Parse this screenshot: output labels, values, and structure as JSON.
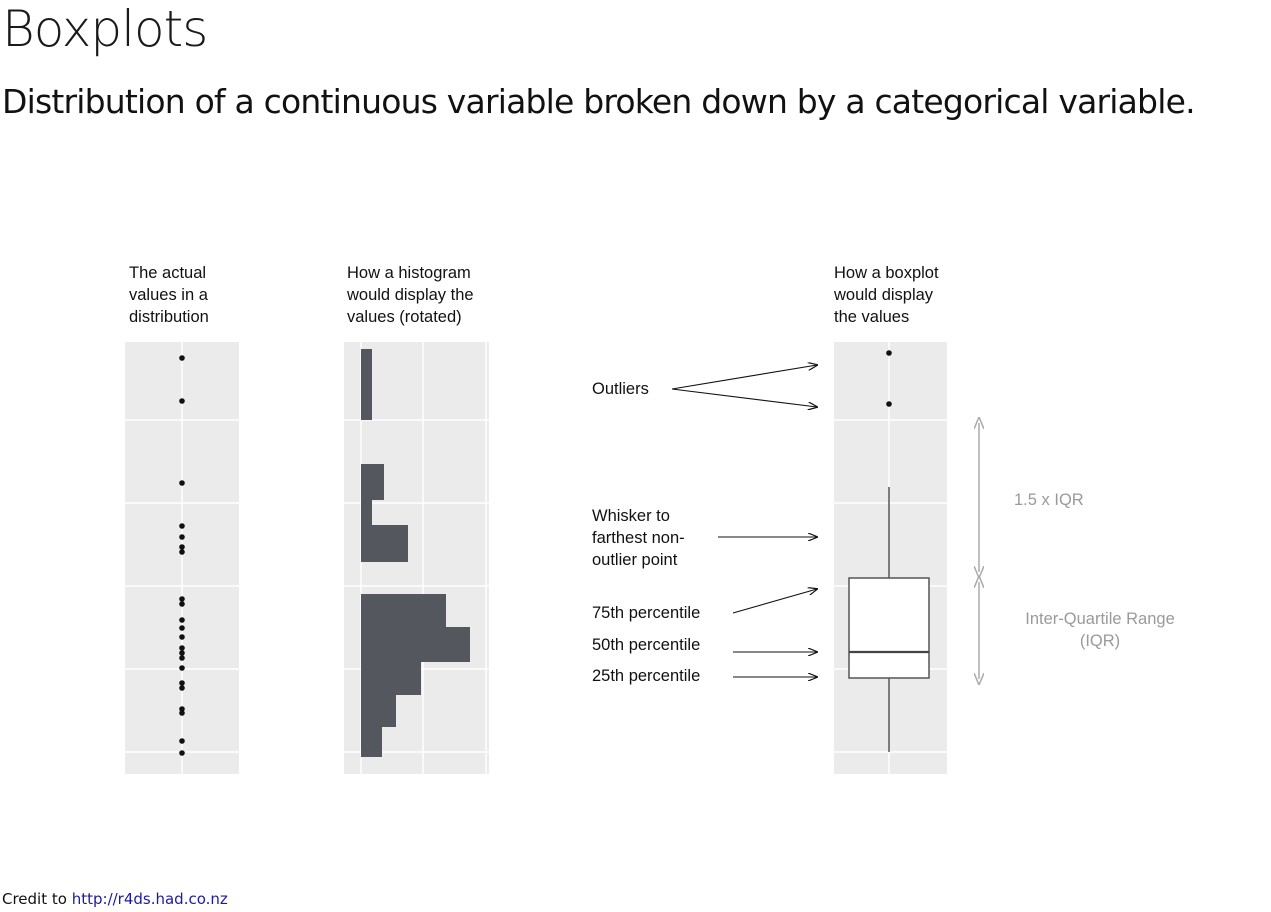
{
  "title": "Boxplots",
  "subtitle": "Distribution of a continuous variable broken down by a categorical variable.",
  "columns": {
    "values": [
      "The actual",
      "values in a",
      "distribution"
    ],
    "histogram": [
      "How a histogram",
      "would display the",
      "values (rotated)"
    ],
    "boxplot": [
      "How a boxplot",
      "would display",
      "the values"
    ]
  },
  "annotations": {
    "outliers": "Outliers",
    "whisker": [
      "Whisker to",
      "farthest non-",
      "outlier point"
    ],
    "p75": "75th percentile",
    "p50": "50th percentile",
    "p25": "25th percentile",
    "range_15iqr": "1.5 x IQR",
    "iqr": [
      "Inter-Quartile Range",
      "(IQR)"
    ]
  },
  "credit": {
    "prefix": "Credit to",
    "link": "http://r4ds.had.co.nz"
  },
  "colors": {
    "panel_bg": "#ebebeb",
    "bar_fill": "#54575d",
    "range_arrow": "#aaaaaa",
    "link": "#1a1aa6"
  }
}
